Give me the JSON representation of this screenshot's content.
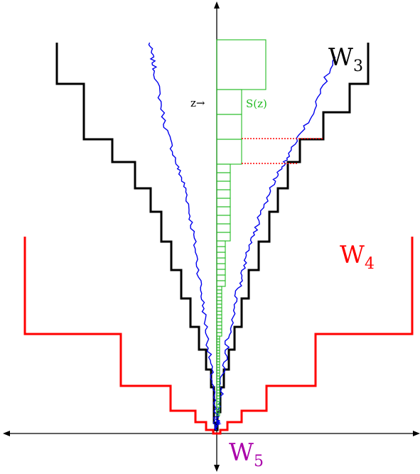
{
  "labels": {
    "w3": {
      "base": "W",
      "sub": "3"
    },
    "w4": {
      "base": "W",
      "sub": "4"
    },
    "w5": {
      "base": "W",
      "sub": "5"
    },
    "s_of_z": "S(z)",
    "z_pointer": "z→"
  },
  "colors": {
    "w3": "#000000",
    "w4": "#ff0000",
    "w5": "#aa00aa",
    "brownian": "#0000ee",
    "s_boxes": "#22bb22",
    "red_dotted": "#ff0000",
    "axes": "#000000"
  }
}
